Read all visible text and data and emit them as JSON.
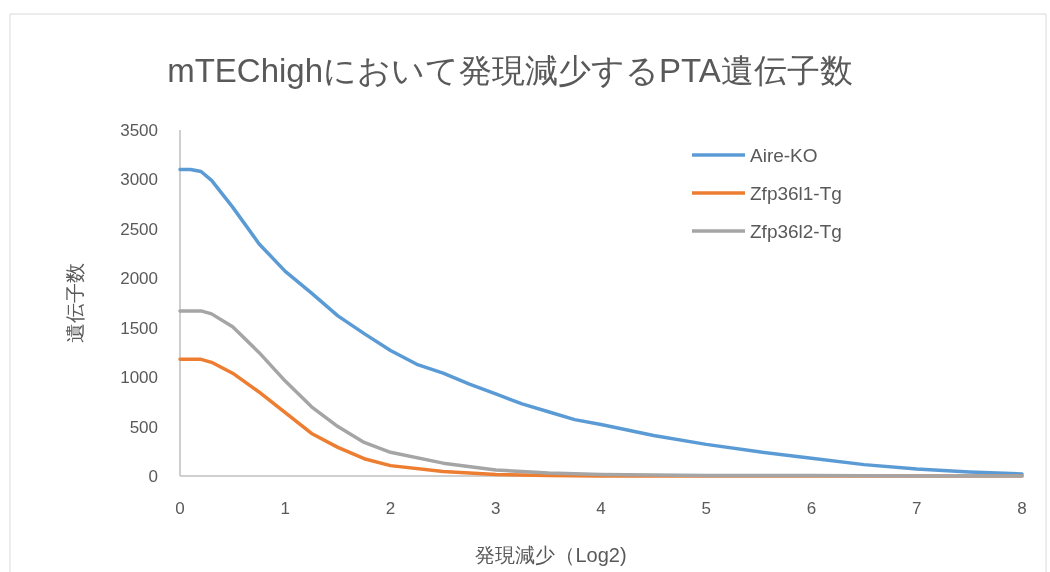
{
  "chart_data": {
    "type": "line",
    "title": "mTEChighにおいて発現減少するPTA遺伝子数",
    "xlabel": "発現減少（Log2)",
    "ylabel": "遺伝子数",
    "xlim": [
      0,
      8
    ],
    "xticks": [
      0,
      1,
      2,
      3,
      4,
      5,
      6,
      7,
      8
    ],
    "ylim": [
      0,
      3500
    ],
    "yticks": [
      0,
      500,
      1000,
      1500,
      2000,
      2500,
      3000,
      3500
    ],
    "grid": false,
    "legend": "top right",
    "marker": "none",
    "line_style": "solid",
    "series": [
      {
        "name": "Aire-KO",
        "color": "#5b9bd5",
        "x": [
          0,
          0.1,
          0.2,
          0.3,
          0.5,
          0.75,
          1,
          1.25,
          1.5,
          1.75,
          2,
          2.25,
          2.5,
          2.75,
          3,
          3.25,
          3.5,
          3.75,
          4,
          4.5,
          5,
          5.5,
          6,
          6.5,
          7,
          7.5,
          8
        ],
        "values": [
          3100,
          3100,
          3080,
          2990,
          2720,
          2350,
          2070,
          1850,
          1620,
          1440,
          1270,
          1130,
          1040,
          930,
          830,
          730,
          650,
          570,
          520,
          410,
          320,
          245,
          180,
          115,
          70,
          40,
          20
        ]
      },
      {
        "name": "Zfp36l1-Tg",
        "color": "#ed7d31",
        "x": [
          0,
          0.2,
          0.3,
          0.5,
          0.75,
          1,
          1.25,
          1.5,
          1.75,
          2,
          2.5,
          3,
          3.5,
          4,
          5,
          6,
          7,
          8
        ],
        "values": [
          1180,
          1180,
          1150,
          1040,
          850,
          640,
          430,
          290,
          175,
          105,
          45,
          15,
          5,
          0,
          0,
          0,
          0,
          0
        ]
      },
      {
        "name": "Zfp36l2-Tg",
        "color": "#a5a5a5",
        "x": [
          0,
          0.2,
          0.3,
          0.5,
          0.75,
          1,
          1.25,
          1.5,
          1.75,
          2,
          2.5,
          3,
          3.5,
          4,
          5,
          6,
          7,
          8
        ],
        "values": [
          1670,
          1670,
          1640,
          1510,
          1250,
          960,
          700,
          500,
          340,
          240,
          130,
          60,
          30,
          15,
          5,
          5,
          0,
          0
        ]
      }
    ]
  }
}
